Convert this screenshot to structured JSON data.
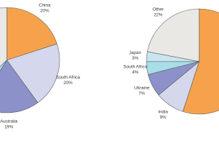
{
  "chart_data": [
    {
      "type": "pie",
      "categories": [
        "China",
        "South Africa",
        "Australia",
        null,
        null
      ],
      "values": [
        20,
        20,
        19,
        4,
        37
      ],
      "value_labels": [
        "20%",
        "20%",
        "19%",
        null,
        null
      ],
      "colors": [
        "#f6a24c",
        "#d5d7ec",
        "#8c92c9",
        "#a9dde7",
        "#e9e8e5"
      ]
    },
    {
      "type": "pie",
      "categories": [
        null,
        "India",
        "Ukraine",
        "South Africa",
        "Japan",
        "Other"
      ],
      "values": [
        55,
        9,
        7,
        4,
        3,
        22
      ],
      "value_labels": [
        null,
        "9%",
        "7%",
        "4%",
        "3%",
        "22%"
      ],
      "colors": [
        "#f6a24c",
        "#d5d7ec",
        "#8c92c9",
        "#a9dde7",
        "#c9e5ef",
        "#e9e8e5"
      ]
    }
  ]
}
